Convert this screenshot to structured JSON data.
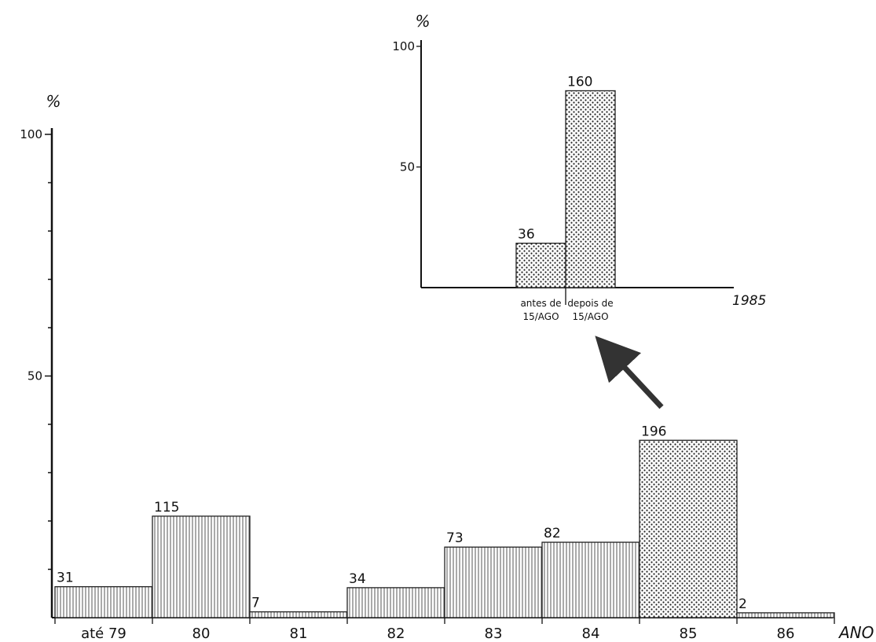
{
  "chart_data": [
    {
      "type": "bar",
      "ylabel": "%",
      "xlabel": "ANO",
      "ylim": [
        0,
        100
      ],
      "yticks": [
        "100",
        "50"
      ],
      "categories": [
        "até 79",
        "80",
        "81",
        "82",
        "83",
        "84",
        "85",
        "86"
      ],
      "values": [
        6.4,
        21.0,
        1.2,
        6.2,
        14.6,
        15.6,
        36.7,
        1.0
      ],
      "data_labels": [
        "31",
        "115",
        "7",
        "34",
        "73",
        "82",
        "196",
        "2"
      ],
      "highlight": {
        "category": "85",
        "fill": "dotted"
      },
      "grid": false
    },
    {
      "type": "bar",
      "ylabel": "%",
      "xlabel": "1985",
      "ylim": [
        0,
        100
      ],
      "yticks": [
        "100",
        "50"
      ],
      "categories": [
        "antes de 15/AGO",
        "depois de 15/AGO"
      ],
      "category_lines": [
        [
          "antes de",
          "15/AGO"
        ],
        [
          "depois de",
          "15/AGO"
        ]
      ],
      "values": [
        18.4,
        81.6
      ],
      "data_labels": [
        "36",
        "160"
      ],
      "fill": "dotted",
      "grid": false
    }
  ],
  "colors": {
    "ink": "#111111",
    "background": "#ffffff"
  }
}
